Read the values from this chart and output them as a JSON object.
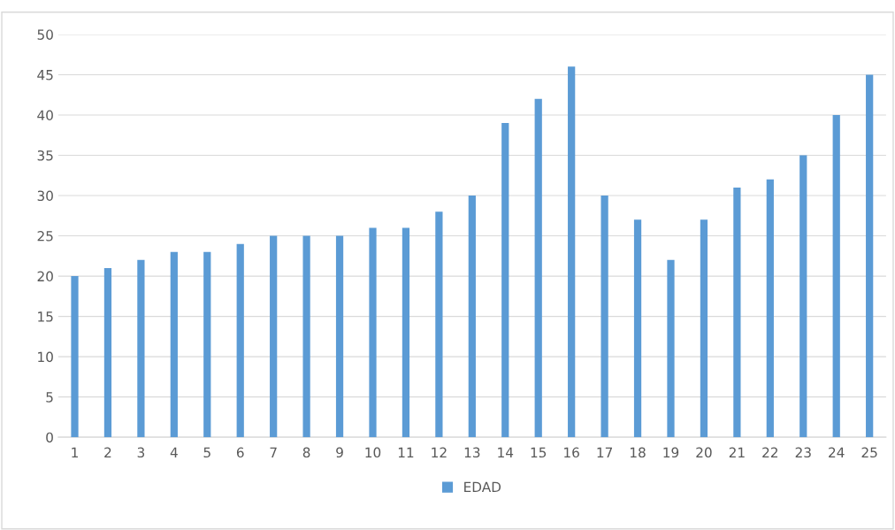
{
  "chart_data": {
    "type": "bar",
    "categories": [
      "1",
      "2",
      "3",
      "4",
      "5",
      "6",
      "7",
      "8",
      "9",
      "10",
      "11",
      "12",
      "13",
      "14",
      "15",
      "16",
      "17",
      "18",
      "19",
      "20",
      "21",
      "22",
      "23",
      "24",
      "25"
    ],
    "series": [
      {
        "name": "EDAD",
        "color": "#5b9bd5",
        "values": [
          20,
          21,
          22,
          23,
          23,
          24,
          25,
          25,
          25,
          26,
          26,
          28,
          30,
          39,
          42,
          46,
          30,
          27,
          22,
          27,
          31,
          32,
          35,
          40,
          45
        ]
      }
    ],
    "ylim": [
      0,
      50
    ],
    "yticks": [
      0,
      5,
      10,
      15,
      20,
      25,
      30,
      35,
      40,
      45,
      50
    ],
    "grid": "y",
    "legend": "bottom"
  }
}
